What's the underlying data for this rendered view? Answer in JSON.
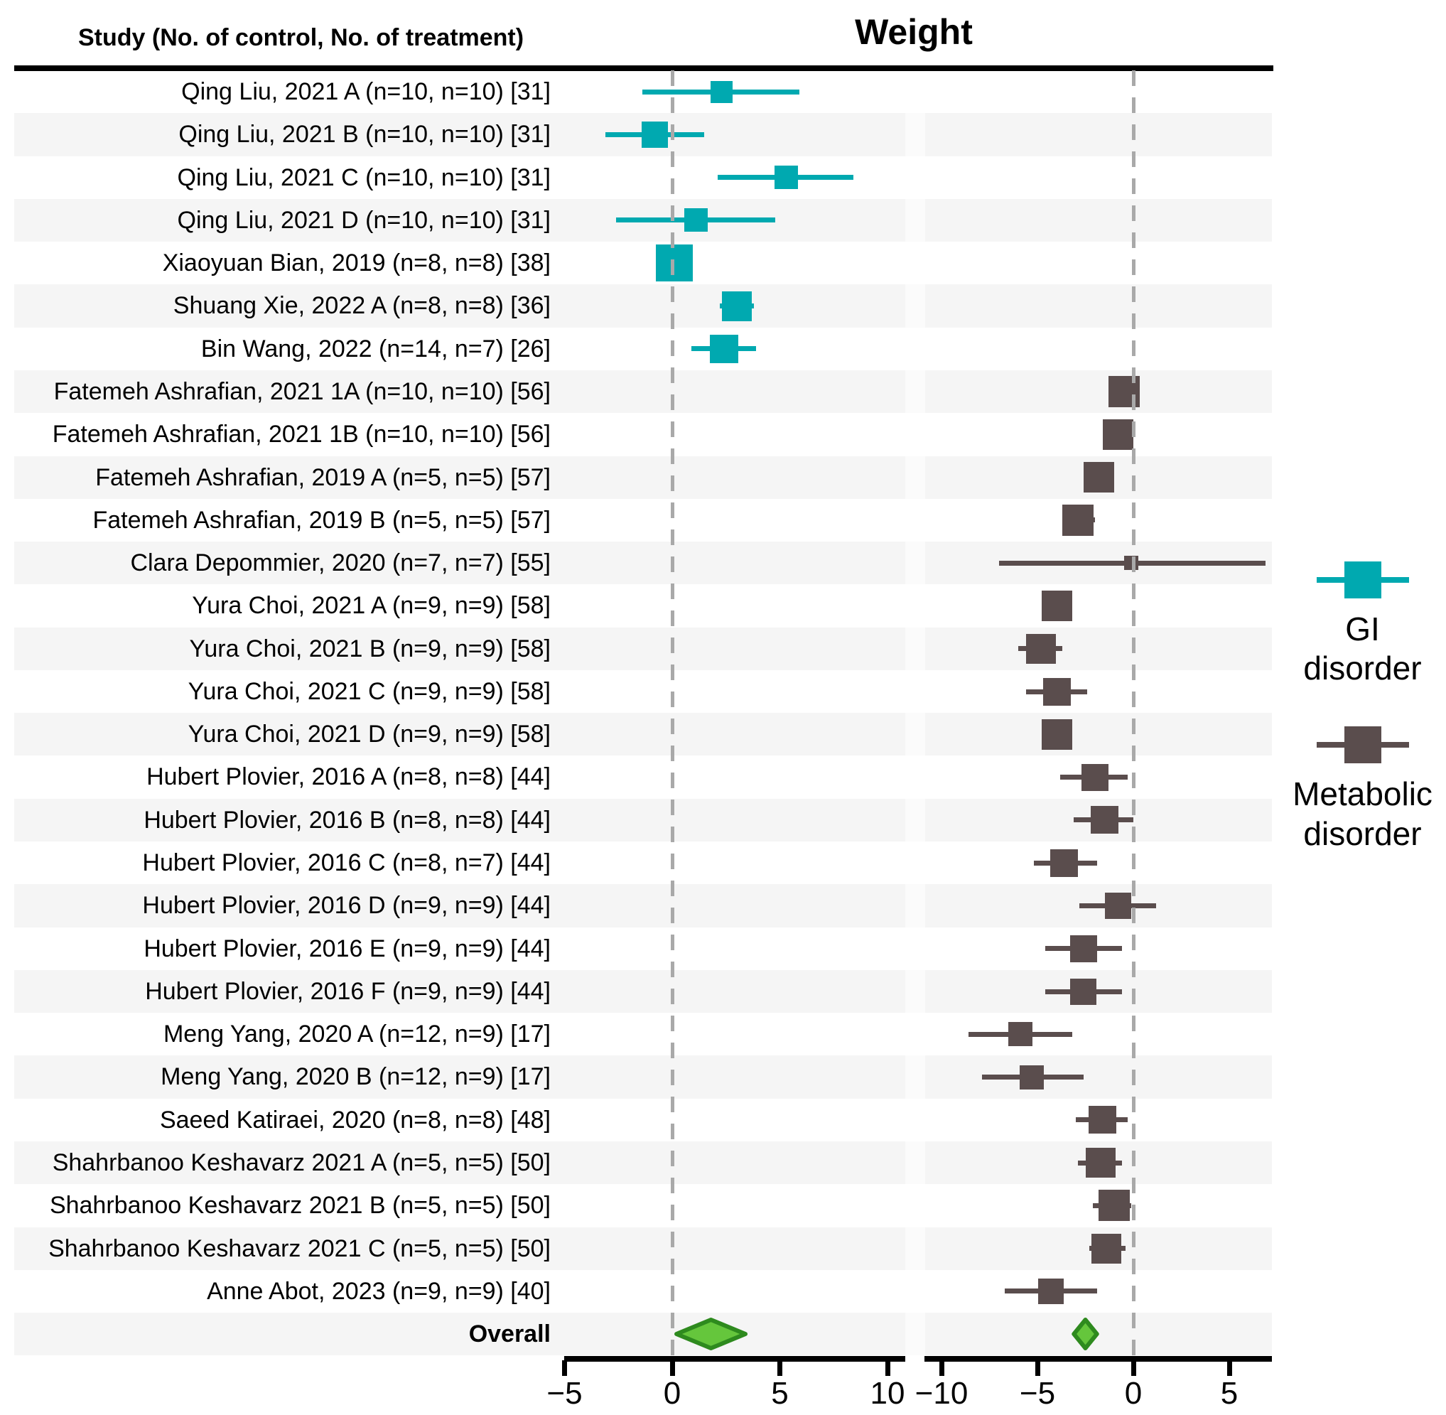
{
  "header": {
    "study_column": "Study (No. of control, No. of treatment)"
  },
  "chart_data": {
    "type": "forest",
    "title": "Weight",
    "colors": {
      "gi": "#00a9b0",
      "metabolic": "#5a4d4d",
      "overall_fill": "#65c63c",
      "overall_stroke": "#2e8a1e",
      "stripe": "#f5f5f5",
      "dashed_zero_line": "#a9a9a9"
    },
    "panels": [
      {
        "name": "GI disorder",
        "legend_label": "GI\ndisorder",
        "axis": {
          "min": -5,
          "max": 10,
          "ticks": [
            -5,
            0,
            5,
            10
          ],
          "tick_labels": [
            "−5",
            "0",
            "5",
            "10"
          ]
        }
      },
      {
        "name": "Metabolic disorder",
        "legend_label": "Metabolic\ndisorder",
        "axis": {
          "min": -10,
          "max": 7,
          "ticks": [
            -10,
            -5,
            0,
            5
          ],
          "tick_labels": [
            "−10",
            "−5",
            "0",
            "5"
          ]
        }
      }
    ],
    "rows": [
      {
        "label": "Qing Liu, 2021 A (n=10, n=10) [31]",
        "panel": 0,
        "est": 2.3,
        "lo": -1.4,
        "hi": 5.9,
        "size": 31
      },
      {
        "label": "Qing Liu, 2021 B (n=10, n=10) [31]",
        "panel": 0,
        "est": -0.8,
        "lo": -3.1,
        "hi": 1.5,
        "size": 37
      },
      {
        "label": "Qing Liu, 2021 C (n=10, n=10) [31]",
        "panel": 0,
        "est": 5.3,
        "lo": 2.1,
        "hi": 8.4,
        "size": 33
      },
      {
        "label": "Qing Liu, 2021 D (n=10, n=10) [31]",
        "panel": 0,
        "est": 1.1,
        "lo": -2.6,
        "hi": 4.8,
        "size": 33
      },
      {
        "label": "Xiaoyuan Bian, 2019 (n=8, n=8) [38]",
        "panel": 0,
        "est": 0.1,
        "lo": -0.6,
        "hi": 0.8,
        "size": 52
      },
      {
        "label": "Shuang Xie, 2022 A (n=8, n=8) [36]",
        "panel": 0,
        "est": 3.0,
        "lo": 2.2,
        "hi": 3.8,
        "size": 42
      },
      {
        "label": "Bin Wang, 2022 (n=14, n=7) [26]",
        "panel": 0,
        "est": 2.4,
        "lo": 0.9,
        "hi": 3.9,
        "size": 40
      },
      {
        "label": "Fatemeh Ashrafian, 2021 1A (n=10, n=10) [56]",
        "panel": 1,
        "est": -0.5,
        "lo": -1.0,
        "hi": 0.1,
        "size": 44
      },
      {
        "label": "Fatemeh Ashrafian, 2021 1B (n=10, n=10) [56]",
        "panel": 1,
        "est": -0.8,
        "lo": -1.3,
        "hi": -0.3,
        "size": 43
      },
      {
        "label": "Fatemeh Ashrafian, 2019 A (n=5, n=5) [57]",
        "panel": 1,
        "est": -1.8,
        "lo": -2.4,
        "hi": -1.2,
        "size": 43
      },
      {
        "label": "Fatemeh Ashrafian, 2019 B (n=5, n=5) [57]",
        "panel": 1,
        "est": -2.9,
        "lo": -3.7,
        "hi": -2.0,
        "size": 44
      },
      {
        "label": "Clara Depommier, 2020 (n=7, n=7) [55]",
        "panel": 1,
        "est": -0.1,
        "lo": -7.0,
        "hi": 6.9,
        "size": 20
      },
      {
        "label": "Yura Choi, 2021 A (n=9, n=9) [58]",
        "panel": 1,
        "est": -4.0,
        "lo": -4.6,
        "hi": -3.4,
        "size": 43
      },
      {
        "label": "Yura Choi, 2021 B (n=9, n=9) [58]",
        "panel": 1,
        "est": -4.8,
        "lo": -6.0,
        "hi": -3.7,
        "size": 42
      },
      {
        "label": "Yura Choi, 2021 C (n=9, n=9) [58]",
        "panel": 1,
        "est": -4.0,
        "lo": -5.6,
        "hi": -2.4,
        "size": 39
      },
      {
        "label": "Yura Choi, 2021 D (n=9, n=9) [58]",
        "panel": 1,
        "est": -4.0,
        "lo": -4.6,
        "hi": -3.4,
        "size": 43
      },
      {
        "label": "Hubert Plovier, 2016 A (n=8, n=8) [44]",
        "panel": 1,
        "est": -2.0,
        "lo": -3.8,
        "hi": -0.3,
        "size": 38
      },
      {
        "label": "Hubert Plovier, 2016 B (n=8, n=8) [44]",
        "panel": 1,
        "est": -1.5,
        "lo": -3.1,
        "hi": 0.0,
        "size": 39
      },
      {
        "label": "Hubert Plovier, 2016 C (n=8, n=7) [44]",
        "panel": 1,
        "est": -3.6,
        "lo": -5.2,
        "hi": -1.9,
        "size": 39
      },
      {
        "label": "Hubert Plovier, 2016 D (n=9, n=9) [44]",
        "panel": 1,
        "est": -0.8,
        "lo": -2.8,
        "hi": 1.2,
        "size": 37
      },
      {
        "label": "Hubert Plovier, 2016 E (n=9, n=9) [44]",
        "panel": 1,
        "est": -2.6,
        "lo": -4.6,
        "hi": -0.6,
        "size": 38
      },
      {
        "label": "Hubert Plovier, 2016 F (n=9, n=9) [44]",
        "panel": 1,
        "est": -2.6,
        "lo": -4.6,
        "hi": -0.6,
        "size": 37
      },
      {
        "label": "Meng Yang, 2020 A (n=12, n=9) [17]",
        "panel": 1,
        "est": -5.9,
        "lo": -8.6,
        "hi": -3.2,
        "size": 34
      },
      {
        "label": "Meng Yang, 2020 B (n=12, n=9) [17]",
        "panel": 1,
        "est": -5.3,
        "lo": -7.9,
        "hi": -2.6,
        "size": 34
      },
      {
        "label": "Saeed Katiraei, 2020 (n=8, n=8) [48]",
        "panel": 1,
        "est": -1.6,
        "lo": -3.0,
        "hi": -0.3,
        "size": 39
      },
      {
        "label": "Shahrbanoo Keshavarz 2021 A (n=5, n=5) [50]",
        "panel": 1,
        "est": -1.7,
        "lo": -2.9,
        "hi": -0.6,
        "size": 42
      },
      {
        "label": "Shahrbanoo Keshavarz 2021 B (n=5, n=5) [50]",
        "panel": 1,
        "est": -1.0,
        "lo": -2.1,
        "hi": -0.1,
        "size": 44
      },
      {
        "label": "Shahrbanoo Keshavarz 2021 C (n=5, n=5) [50]",
        "panel": 1,
        "est": -1.4,
        "lo": -2.3,
        "hi": -0.4,
        "size": 42
      },
      {
        "label": "Anne Abot, 2023 (n=9, n=9) [40]",
        "panel": 1,
        "est": -4.3,
        "lo": -6.7,
        "hi": -1.9,
        "size": 36
      }
    ],
    "overall": {
      "label": "Overall",
      "gi": {
        "est": 1.8,
        "lo": 0.2,
        "hi": 3.4
      },
      "metabolic": {
        "est": -2.5,
        "lo": -3.1,
        "hi": -1.9
      }
    }
  }
}
